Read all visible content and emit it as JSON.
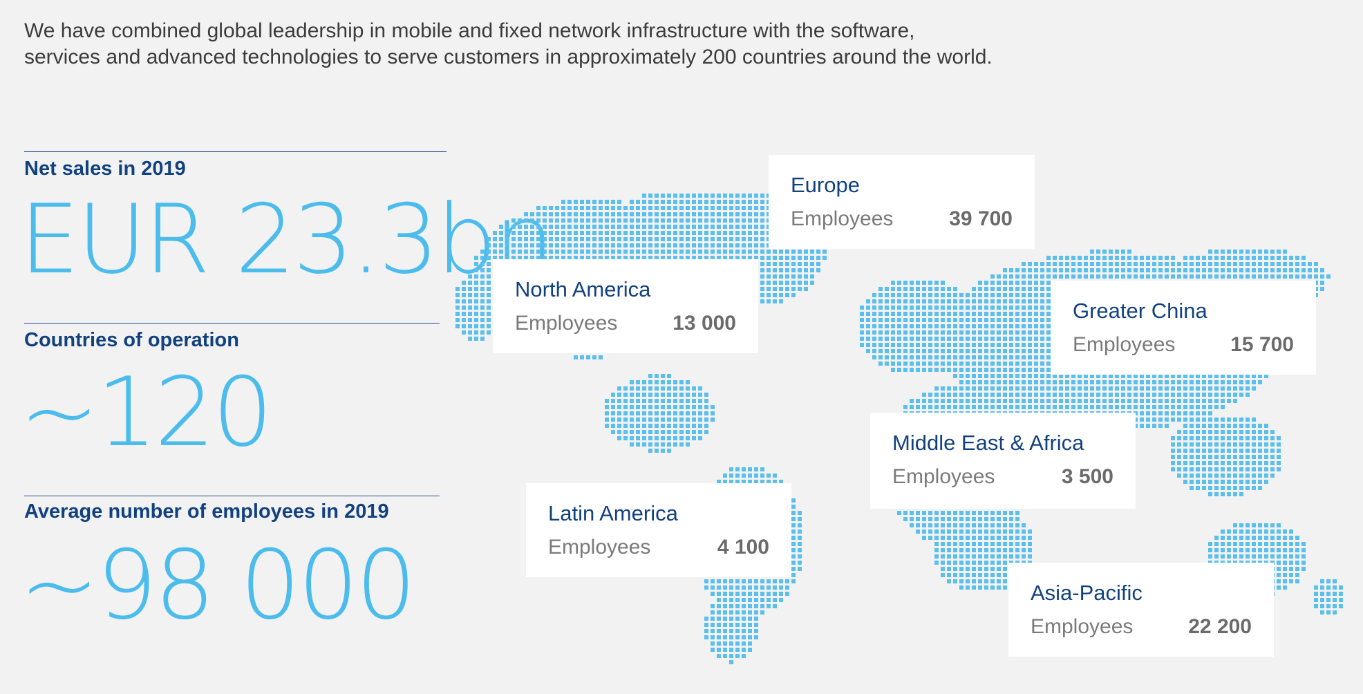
{
  "intro": {
    "line1": "We have combined global leadership in mobile and fixed network infrastructure with the software,",
    "line2": "services and advanced technologies to serve customers in approximately 200 countries around the world."
  },
  "stats": {
    "net_sales": {
      "label": "Net sales in 2019",
      "value": "EUR 23.3bn"
    },
    "countries": {
      "label": "Countries of operation",
      "value": "~120"
    },
    "employees": {
      "label": "Average number of employees in 2019",
      "value": "~98 000"
    }
  },
  "regions": [
    {
      "name": "Europe",
      "employees_label": "Employees",
      "employees": "39 700"
    },
    {
      "name": "North America",
      "employees_label": "Employees",
      "employees": "13 000"
    },
    {
      "name": "Greater China",
      "employees_label": "Employees",
      "employees": "15 700"
    },
    {
      "name": "Middle East & Africa",
      "employees_label": "Employees",
      "employees": "3 500"
    },
    {
      "name": "Latin America",
      "employees_label": "Employees",
      "employees": "4 100"
    },
    {
      "name": "Asia-Pacific",
      "employees_label": "Employees",
      "employees": "22 200"
    }
  ],
  "colors": {
    "background": "#f2f2f2",
    "accent_blue": "#4cbcec",
    "label_navy": "#12417f",
    "map_dot": "#5bbfee"
  }
}
